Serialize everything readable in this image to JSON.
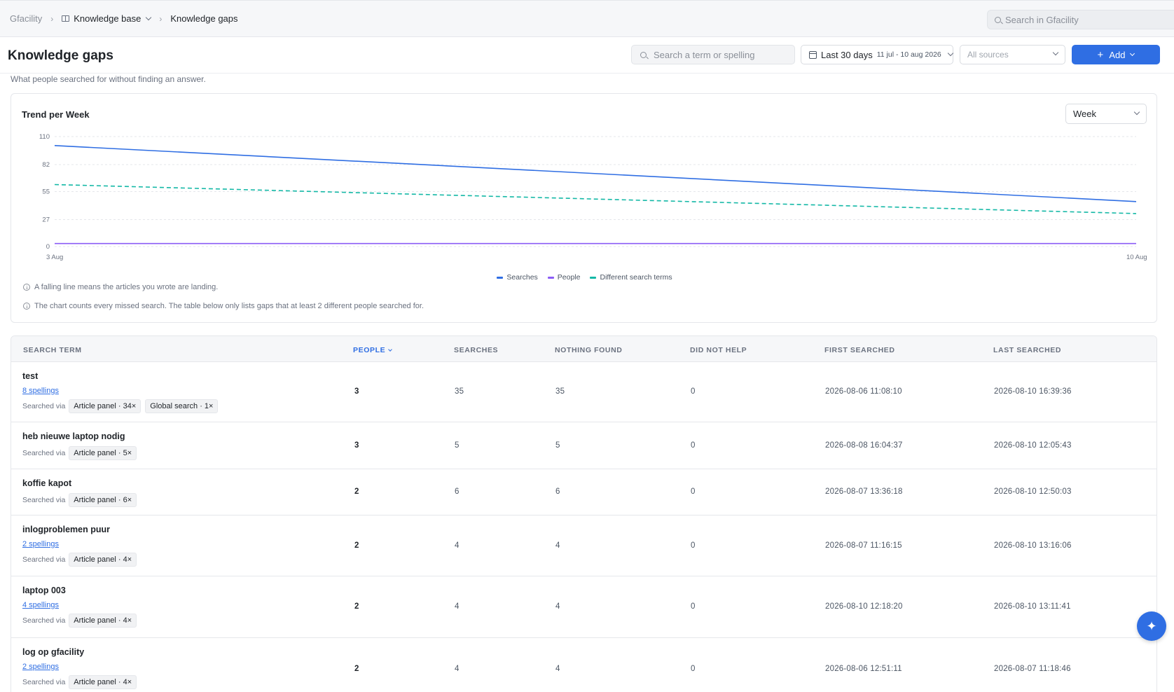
{
  "breadcrumb": {
    "root": "Gfacility",
    "section": "Knowledge base",
    "current": "Knowledge gaps"
  },
  "top_search": {
    "placeholder": "Search in Gfacility"
  },
  "header": {
    "title": "Knowledge gaps",
    "term_search_placeholder": "Search a term or spelling",
    "date_label": "Last 30 days",
    "date_range": "11 jul - 10 aug 2026",
    "sources_placeholder": "All sources",
    "add_label": "Add"
  },
  "subtitle": "What people searched for without finding an answer.",
  "chart_card": {
    "title": "Trend per Week",
    "granularity": "Week",
    "notes": [
      "A falling line means the articles you wrote are landing.",
      "The chart counts every missed search. The table below only lists gaps that at least 2 different people searched for."
    ]
  },
  "colors": {
    "searches": "#2f6ee3",
    "people": "#8b5cf6",
    "different_terms": "#14b8a6",
    "accent": "#2f6ee3"
  },
  "chart_data": {
    "type": "line",
    "title": "Trend per Week",
    "x": [
      "3 Aug",
      "10 Aug"
    ],
    "xlabel": "",
    "ylabel": "",
    "yticks": [
      0,
      27,
      55,
      82,
      110
    ],
    "ylim": [
      0,
      110
    ],
    "grid": true,
    "legend_position": "bottom-center",
    "series": [
      {
        "name": "Searches",
        "values": [
          101,
          45
        ],
        "color": "#2f6ee3",
        "dash": false
      },
      {
        "name": "People",
        "values": [
          3,
          3
        ],
        "color": "#8b5cf6",
        "dash": false
      },
      {
        "name": "Different search terms",
        "values": [
          62,
          33
        ],
        "color": "#14b8a6",
        "dash": true
      }
    ]
  },
  "table": {
    "headers": {
      "term": "SEARCH TERM",
      "people": "PEOPLE",
      "searches": "SEARCHES",
      "nothing_found": "NOTHING FOUND",
      "did_not_help": "DID NOT HELP",
      "first_searched": "FIRST SEARCHED",
      "last_searched": "LAST SEARCHED"
    },
    "via_label": "Searched via",
    "rows": [
      {
        "term": "test",
        "spellings": "8 spellings",
        "chips": [
          "Article panel · 34×",
          "Global search · 1×"
        ],
        "people": "3",
        "searches": "35",
        "nothing_found": "35",
        "did_not_help": "0",
        "first": "2026-08-06 11:08:10",
        "last": "2026-08-10 16:39:36"
      },
      {
        "term": "heb nieuwe laptop nodig",
        "spellings": "",
        "chips": [
          "Article panel · 5×"
        ],
        "people": "3",
        "searches": "5",
        "nothing_found": "5",
        "did_not_help": "0",
        "first": "2026-08-08 16:04:37",
        "last": "2026-08-10 12:05:43"
      },
      {
        "term": "koffie kapot",
        "spellings": "",
        "chips": [
          "Article panel · 6×"
        ],
        "people": "2",
        "searches": "6",
        "nothing_found": "6",
        "did_not_help": "0",
        "first": "2026-08-07 13:36:18",
        "last": "2026-08-10 12:50:03"
      },
      {
        "term": "inlogproblemen puur",
        "spellings": "2 spellings",
        "chips": [
          "Article panel · 4×"
        ],
        "people": "2",
        "searches": "4",
        "nothing_found": "4",
        "did_not_help": "0",
        "first": "2026-08-07 11:16:15",
        "last": "2026-08-10 13:16:06"
      },
      {
        "term": "laptop 003",
        "spellings": "4 spellings",
        "chips": [
          "Article panel · 4×"
        ],
        "people": "2",
        "searches": "4",
        "nothing_found": "4",
        "did_not_help": "0",
        "first": "2026-08-10 12:18:20",
        "last": "2026-08-10 13:11:41"
      },
      {
        "term": "log op gfacility",
        "spellings": "2 spellings",
        "chips": [
          "Article panel · 4×"
        ],
        "people": "2",
        "searches": "4",
        "nothing_found": "4",
        "did_not_help": "0",
        "first": "2026-08-06 12:51:11",
        "last": "2026-08-07 11:18:46"
      }
    ]
  }
}
